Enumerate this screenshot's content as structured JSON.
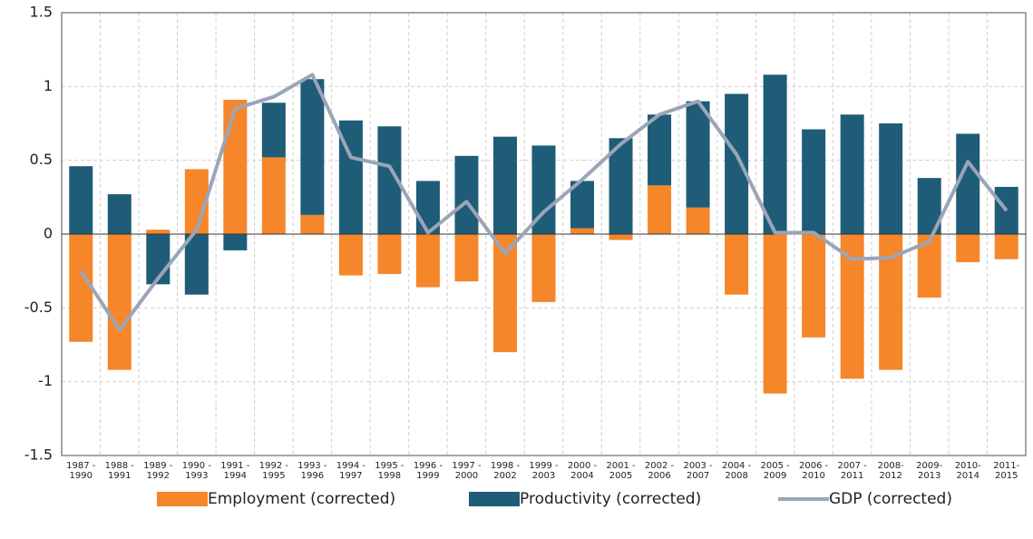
{
  "chart_data": {
    "type": "stacked-bar-line",
    "categories": [
      "1987 - 1990",
      "1988 - 1991",
      "1989 - 1992",
      "1990 - 1993",
      "1991 - 1994",
      "1992 - 1995",
      "1993 - 1996",
      "1994 - 1997",
      "1995 - 1998",
      "1996 - 1999",
      "1997 - 2000",
      "1998 - 2002",
      "1999 - 2003",
      "2000 - 2004",
      "2001 - 2005",
      "2002 - 2006",
      "2003 - 2007",
      "2004 - 2008",
      "2005 - 2009",
      "2006 - 2010",
      "2007 - 2011",
      "2008- 2012",
      "2009- 2013",
      "2010- 2014",
      "2011- 2015"
    ],
    "series": [
      {
        "name": "Employment (corrected)",
        "color": "#f5862a",
        "kind": "bar",
        "values": [
          -0.73,
          -0.92,
          0.03,
          0.44,
          0.91,
          0.52,
          0.13,
          -0.28,
          -0.27,
          -0.36,
          -0.32,
          -0.8,
          -0.46,
          0.04,
          -0.04,
          0.33,
          0.18,
          -0.41,
          -1.08,
          -0.7,
          -0.98,
          -0.92,
          -0.43,
          -0.19,
          -0.17
        ]
      },
      {
        "name": "Productivity (corrected)",
        "color": "#1f5c78",
        "kind": "bar",
        "values": [
          0.46,
          0.27,
          -0.34,
          -0.41,
          -0.11,
          0.37,
          0.92,
          0.77,
          0.73,
          0.36,
          0.53,
          0.66,
          0.6,
          0.32,
          0.65,
          0.48,
          0.72,
          0.95,
          1.08,
          0.71,
          0.81,
          0.75,
          0.38,
          0.68,
          0.32
        ]
      },
      {
        "name": "GDP (corrected)",
        "color": "#9aa5b8",
        "kind": "line",
        "values": [
          -0.25,
          -0.65,
          -0.3,
          0.03,
          0.85,
          0.93,
          1.08,
          0.52,
          0.46,
          0.01,
          0.22,
          -0.13,
          0.15,
          0.37,
          0.61,
          0.81,
          0.9,
          0.54,
          0.01,
          0.01,
          -0.17,
          -0.16,
          -0.05,
          0.49,
          0.16
        ]
      }
    ],
    "ylim": [
      -1.5,
      1.5
    ],
    "yticks": [
      -1.5,
      -1,
      -0.5,
      0,
      0.5,
      1,
      1.5
    ],
    "grid": true,
    "legend": "bottom"
  }
}
